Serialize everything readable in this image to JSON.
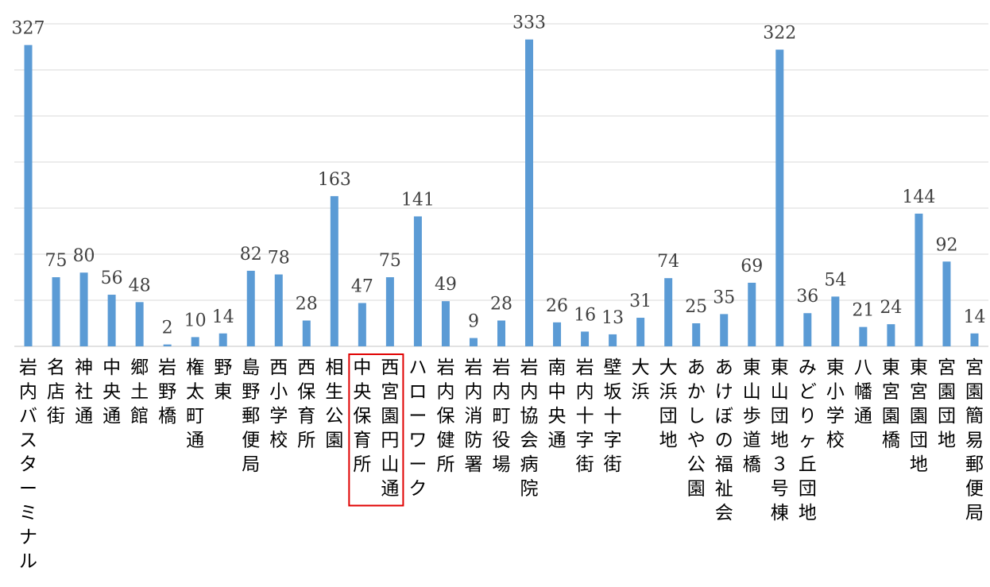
{
  "chart_data": {
    "type": "bar",
    "categories": [
      "岩内バスターミナル",
      "名店街",
      "神社通",
      "中央通",
      "郷土館",
      "岩野橋",
      "権太町通",
      "野東",
      "島野郵便局",
      "西小学校",
      "西保育所",
      "相生公園",
      "中央保育所",
      "西宮園円山通",
      "ハローワーク",
      "岩内保健所",
      "岩内消防署",
      "岩内町役場",
      "岩内協会病院",
      "南中央通",
      "岩内十字街",
      "壁坂十字街",
      "大浜",
      "大浜団地",
      "あかしや公園",
      "あけぼの福祉会",
      "東山歩道橋",
      "東山団地３号棟",
      "みどりヶ丘団地",
      "東小学校",
      "八幡通",
      "東宮園橋",
      "東宮園団地",
      "宮園団地",
      "宮園簡易郵便局"
    ],
    "values": [
      327,
      75,
      80,
      56,
      48,
      2,
      10,
      14,
      82,
      78,
      28,
      163,
      47,
      75,
      141,
      49,
      9,
      28,
      333,
      26,
      16,
      13,
      31,
      74,
      25,
      35,
      69,
      322,
      36,
      54,
      21,
      24,
      144,
      92,
      14
    ],
    "ylim": [
      0,
      350
    ],
    "grid": true,
    "legend": "none",
    "highlighted_categories": [
      "中央保育所",
      "西宮園円山通"
    ],
    "colors": {
      "bar": "#5b9bd5",
      "highlight": "#e00000",
      "grid": "#d9d9d9"
    }
  }
}
